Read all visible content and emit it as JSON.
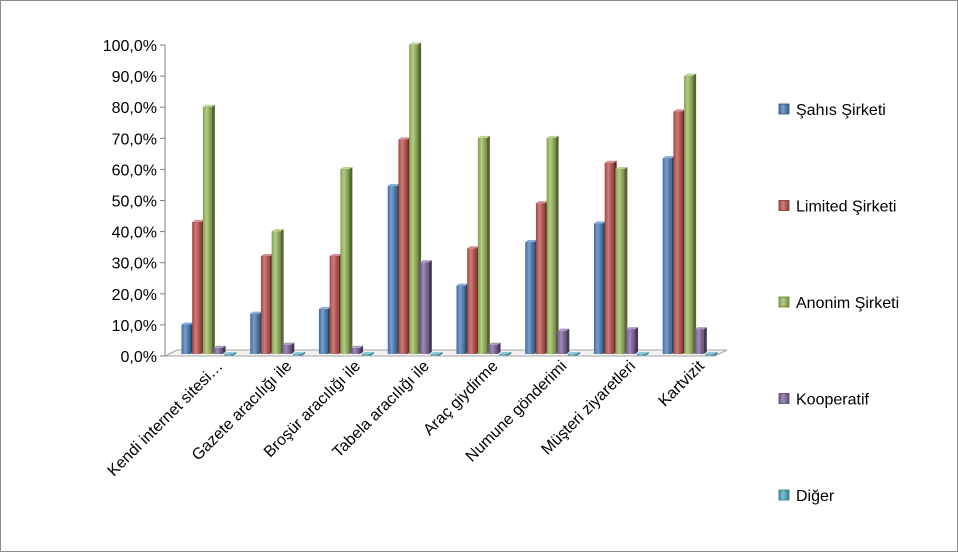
{
  "chart_data": {
    "type": "bar",
    "title": "",
    "xlabel": "",
    "ylabel": "",
    "ylim": [
      0,
      100
    ],
    "yticks": [
      "0,0%",
      "10,0%",
      "20,0%",
      "30,0%",
      "40,0%",
      "50,0%",
      "60,0%",
      "70,0%",
      "80,0%",
      "90,0%",
      "100,0%"
    ],
    "categories": [
      "Kendi internet sitesi…",
      "Gazete aracılığı ile",
      "Broşür aracılığı ile",
      "Tabela aracılığı ile",
      "Araç giydirme",
      "Numune gönderimi",
      "Müşteri ziyaretleri",
      "Kartvizit"
    ],
    "series": [
      {
        "name": "Şahıs Şirketi",
        "color": "#4a7ebb",
        "values": [
          9.5,
          13,
          14.5,
          54,
          22,
          36,
          42,
          63
        ]
      },
      {
        "name": "Limited Şirketi",
        "color": "#c0504d",
        "values": [
          42.5,
          31.5,
          31.5,
          69,
          34,
          48.5,
          61.5,
          78
        ]
      },
      {
        "name": "Anonim Şirketi",
        "color": "#9bbb59",
        "values": [
          79.5,
          39.5,
          59.5,
          99.5,
          69.5,
          69.5,
          59.5,
          89.5
        ]
      },
      {
        "name": "Kooperatif",
        "color": "#8064a2",
        "values": [
          2,
          3,
          2,
          29.5,
          3,
          7.5,
          8,
          8
        ]
      },
      {
        "name": "Diğer",
        "color": "#4bacc6",
        "values": [
          0,
          0,
          0,
          0,
          0,
          0,
          0,
          0
        ]
      }
    ],
    "legend": "right",
    "grid": false
  }
}
